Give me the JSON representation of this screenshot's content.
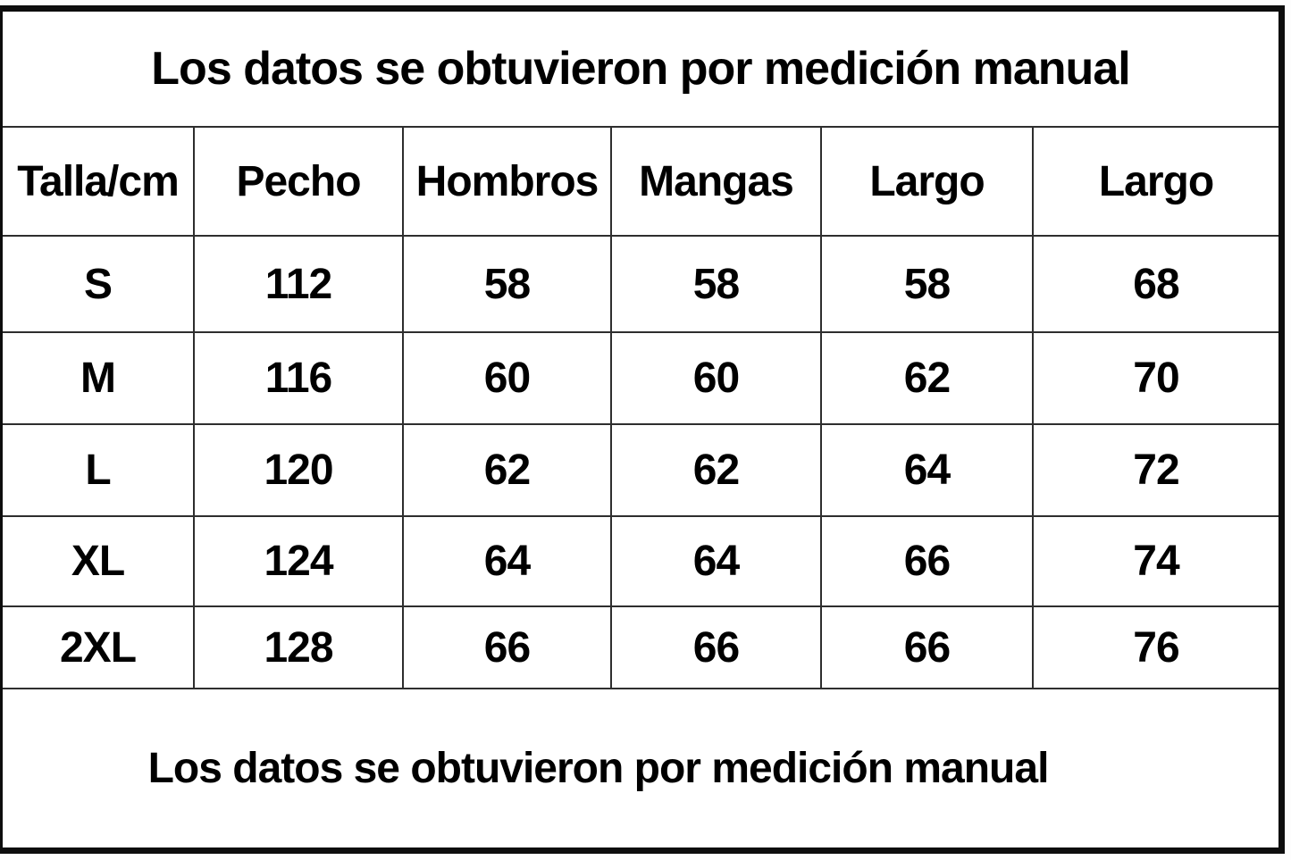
{
  "chart_data": {
    "type": "table",
    "title": "Los datos se obtuvieron por medición manual",
    "columns": [
      "Talla/cm",
      "Pecho",
      "Hombros",
      "Mangas",
      "Largo",
      "Largo"
    ],
    "rows": [
      [
        "S",
        112,
        58,
        58,
        58,
        68
      ],
      [
        "M",
        116,
        60,
        60,
        62,
        70
      ],
      [
        "L",
        120,
        62,
        62,
        64,
        72
      ],
      [
        "XL",
        124,
        64,
        64,
        66,
        74
      ],
      [
        "2XL",
        128,
        66,
        66,
        66,
        76
      ]
    ],
    "footer": "Los datos se obtuvieron por medición manual",
    "units": "cm",
    "layout": {
      "grid": "on",
      "border_color": "#0d0d0d",
      "background": "#ffffff",
      "text_color": "#000000"
    }
  }
}
